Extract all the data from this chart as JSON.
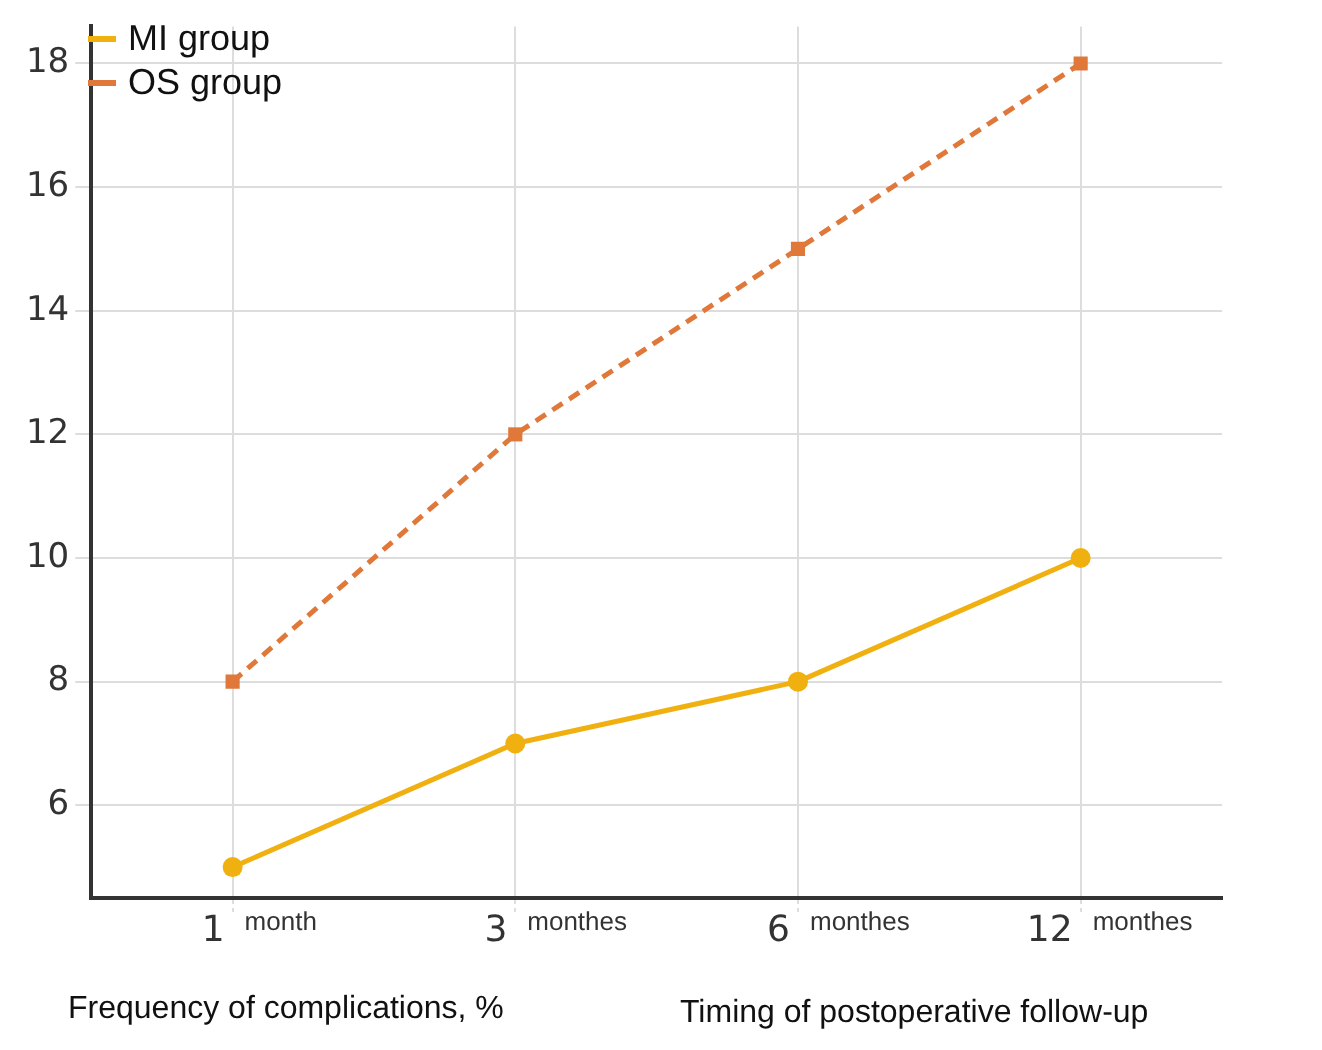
{
  "chart_data": {
    "type": "line",
    "annotations": [
      "Frequency of complications, %"
    ],
    "xlabel": "Timing of postoperative follow-up",
    "categories": [
      "1 month",
      "3 monthes",
      "6 monthes",
      "12 monthes"
    ],
    "series": [
      {
        "name": "MI group",
        "color": "#f0b010",
        "values": [
          5,
          7,
          8,
          10
        ],
        "marker": "circle",
        "line_style": "solid"
      },
      {
        "name": "OS group",
        "color": "#e0783a",
        "values": [
          8,
          12,
          15,
          18
        ],
        "marker": "square",
        "line_style": "dashed"
      }
    ],
    "ylim": [
      4.5,
      18.6
    ],
    "yticks": [
      6,
      8,
      10,
      12,
      14,
      16,
      18
    ],
    "grid": true,
    "legend": "top left"
  }
}
